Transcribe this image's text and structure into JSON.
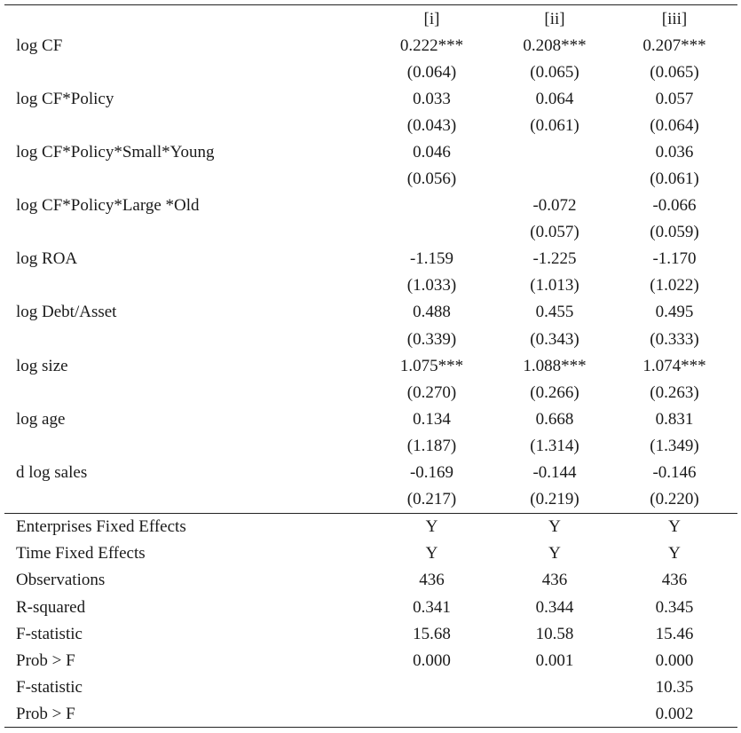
{
  "columns": [
    "[i]",
    "[ii]",
    "[iii]"
  ],
  "coefficients": [
    {
      "label": "log CF",
      "est": [
        "0.222***",
        "0.208***",
        "0.207***"
      ],
      "se": [
        "(0.064)",
        "(0.065)",
        "(0.065)"
      ]
    },
    {
      "label": "log CF*Policy",
      "est": [
        "0.033",
        "0.064",
        "0.057"
      ],
      "se": [
        "(0.043)",
        "(0.061)",
        "(0.064)"
      ]
    },
    {
      "label": "log CF*Policy*Small*Young",
      "est": [
        "0.046",
        "",
        "0.036"
      ],
      "se": [
        "(0.056)",
        "",
        "(0.061)"
      ]
    },
    {
      "label": "log CF*Policy*Large *Old",
      "est": [
        "",
        "-0.072",
        "-0.066"
      ],
      "se": [
        "",
        "(0.057)",
        "(0.059)"
      ]
    },
    {
      "label": "log ROA",
      "est": [
        "-1.159",
        "-1.225",
        "-1.170"
      ],
      "se": [
        "(1.033)",
        "(1.013)",
        "(1.022)"
      ]
    },
    {
      "label": "log Debt/Asset",
      "est": [
        "0.488",
        "0.455",
        "0.495"
      ],
      "se": [
        "(0.339)",
        "(0.343)",
        "(0.333)"
      ]
    },
    {
      "label": "log size",
      "est": [
        "1.075***",
        "1.088***",
        "1.074***"
      ],
      "se": [
        "(0.270)",
        "(0.266)",
        "(0.263)"
      ]
    },
    {
      "label": "log age",
      "est": [
        "0.134",
        "0.668",
        "0.831"
      ],
      "se": [
        "(1.187)",
        "(1.314)",
        "(1.349)"
      ]
    },
    {
      "label": "d log sales",
      "est": [
        "-0.169",
        "-0.144",
        "-0.146"
      ],
      "se": [
        "(0.217)",
        "(0.219)",
        "(0.220)"
      ]
    }
  ],
  "stats": [
    {
      "label": "Enterprises Fixed Effects",
      "values": [
        "Y",
        "Y",
        "Y"
      ]
    },
    {
      "label": "Time Fixed Effects",
      "values": [
        "Y",
        "Y",
        "Y"
      ]
    },
    {
      "label": "Observations",
      "values": [
        "436",
        "436",
        "436"
      ]
    },
    {
      "label": "R-squared",
      "values": [
        "0.341",
        "0.344",
        "0.345"
      ]
    },
    {
      "label": "F-statistic",
      "values": [
        "15.68",
        "10.58",
        "15.46"
      ]
    },
    {
      "label": "Prob > F",
      "values": [
        "0.000",
        "0.001",
        "0.000"
      ]
    },
    {
      "label": "F-statistic",
      "values": [
        "",
        "",
        "10.35"
      ]
    },
    {
      "label": "Prob > F",
      "values": [
        "",
        "",
        "0.002"
      ]
    }
  ]
}
